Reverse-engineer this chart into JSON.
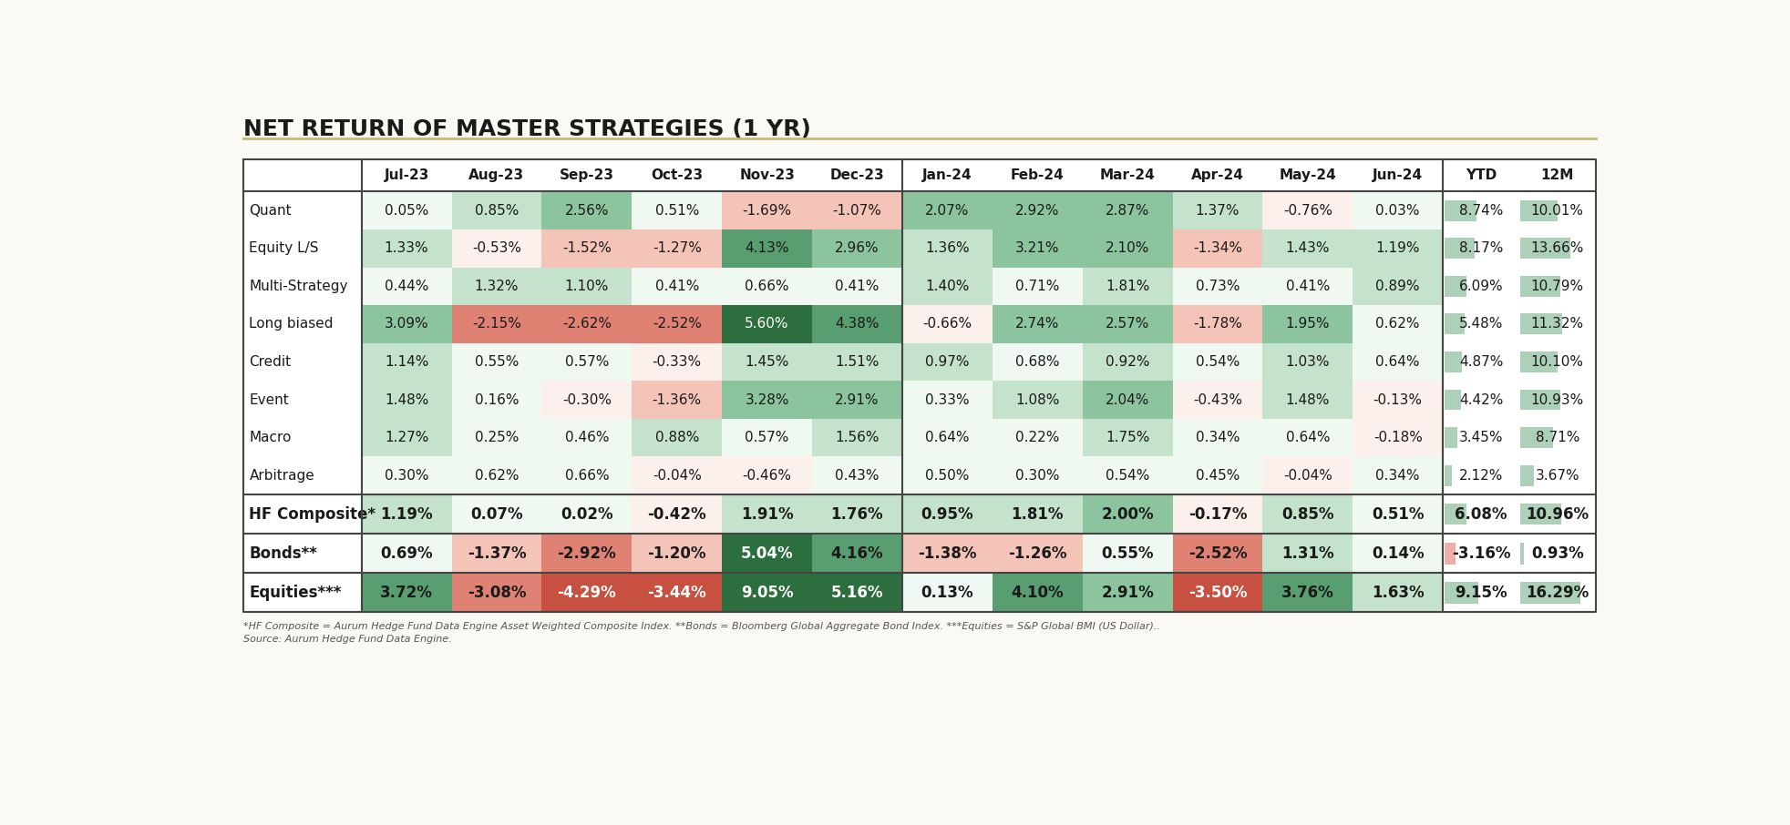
{
  "title": "NET RETURN OF MASTER STRATEGIES (1 YR)",
  "columns": [
    "Jul-23",
    "Aug-23",
    "Sep-23",
    "Oct-23",
    "Nov-23",
    "Dec-23",
    "Jan-24",
    "Feb-24",
    "Mar-24",
    "Apr-24",
    "May-24",
    "Jun-24",
    "YTD",
    "12M"
  ],
  "rows": [
    {
      "label": "Quant",
      "values": [
        0.05,
        0.85,
        2.56,
        0.51,
        -1.69,
        -1.07,
        2.07,
        2.92,
        2.87,
        1.37,
        -0.76,
        0.03,
        8.74,
        10.01
      ]
    },
    {
      "label": "Equity L/S",
      "values": [
        1.33,
        -0.53,
        -1.52,
        -1.27,
        4.13,
        2.96,
        1.36,
        3.21,
        2.1,
        -1.34,
        1.43,
        1.19,
        8.17,
        13.66
      ]
    },
    {
      "label": "Multi-Strategy",
      "values": [
        0.44,
        1.32,
        1.1,
        0.41,
        0.66,
        0.41,
        1.4,
        0.71,
        1.81,
        0.73,
        0.41,
        0.89,
        6.09,
        10.79
      ]
    },
    {
      "label": "Long biased",
      "values": [
        3.09,
        -2.15,
        -2.62,
        -2.52,
        5.6,
        4.38,
        -0.66,
        2.74,
        2.57,
        -1.78,
        1.95,
        0.62,
        5.48,
        11.32
      ]
    },
    {
      "label": "Credit",
      "values": [
        1.14,
        0.55,
        0.57,
        -0.33,
        1.45,
        1.51,
        0.97,
        0.68,
        0.92,
        0.54,
        1.03,
        0.64,
        4.87,
        10.1
      ]
    },
    {
      "label": "Event",
      "values": [
        1.48,
        0.16,
        -0.3,
        -1.36,
        3.28,
        2.91,
        0.33,
        1.08,
        2.04,
        -0.43,
        1.48,
        -0.13,
        4.42,
        10.93
      ]
    },
    {
      "label": "Macro",
      "values": [
        1.27,
        0.25,
        0.46,
        0.88,
        0.57,
        1.56,
        0.64,
        0.22,
        1.75,
        0.34,
        0.64,
        -0.18,
        3.45,
        8.71
      ]
    },
    {
      "label": "Arbitrage",
      "values": [
        0.3,
        0.62,
        0.66,
        -0.04,
        -0.46,
        0.43,
        0.5,
        0.3,
        0.54,
        0.45,
        -0.04,
        0.34,
        2.12,
        3.67
      ]
    }
  ],
  "bold_rows": [
    {
      "label": "HF Composite*",
      "values": [
        1.19,
        0.07,
        0.02,
        -0.42,
        1.91,
        1.76,
        0.95,
        1.81,
        2.0,
        -0.17,
        0.85,
        0.51,
        6.08,
        10.96
      ]
    },
    {
      "label": "Bonds**",
      "values": [
        0.69,
        -1.37,
        -2.92,
        -1.2,
        5.04,
        4.16,
        -1.38,
        -1.26,
        0.55,
        -2.52,
        1.31,
        0.14,
        -3.16,
        0.93
      ]
    },
    {
      "label": "Equities***",
      "values": [
        3.72,
        -3.08,
        -4.29,
        -3.44,
        9.05,
        5.16,
        0.13,
        4.1,
        2.91,
        -3.5,
        3.76,
        1.63,
        9.15,
        16.29
      ]
    }
  ],
  "footnote1": "*HF Composite = Aurum Hedge Fund Data Engine Asset Weighted Composite Index. **Bonds = Bloomberg Global Aggregate Bond Index. ***Equities = S&P Global BMI (US Dollar)..",
  "footnote2": "Source: Aurum Hedge Fund Data Engine.",
  "bg_color": "#faf9f4",
  "divider_color": "#c8b878",
  "table_line_color": "#444444"
}
